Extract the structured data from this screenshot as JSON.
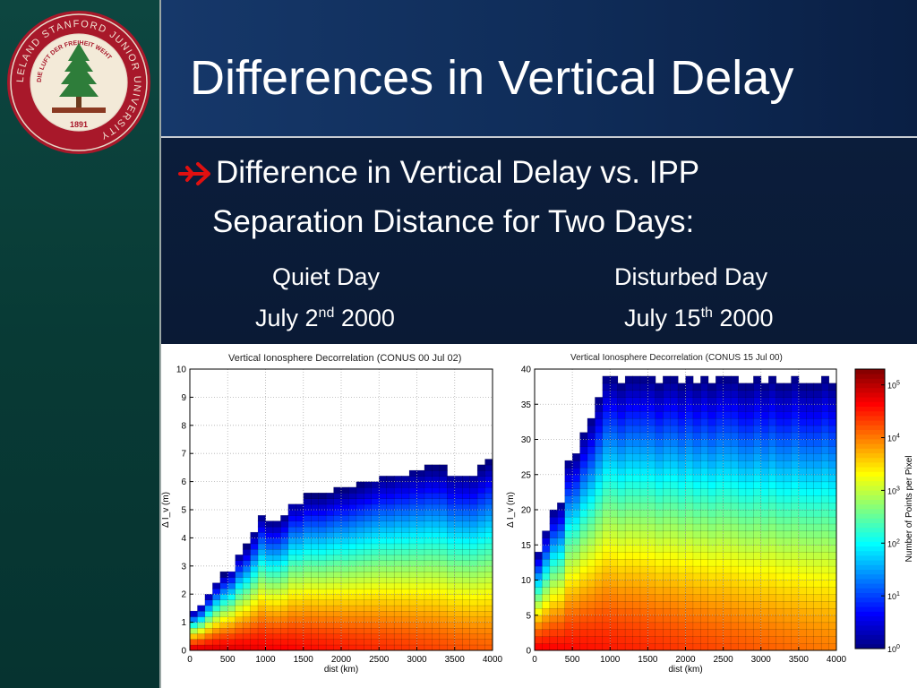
{
  "slide": {
    "title": "Differences in Vertical Delay",
    "bullet_line1": "Difference in Vertical Delay vs. IPP",
    "bullet_line2": "Separation Distance for Two Days:",
    "quiet_label": "Quiet Day",
    "quiet_date_pre": "July 2",
    "quiet_date_sup": "nd",
    "quiet_date_post": " 2000",
    "disturbed_label": "Disturbed  Day",
    "disturbed_date_pre": "July 15",
    "disturbed_date_sup": "th",
    "disturbed_date_post": " 2000"
  },
  "seal": {
    "ring_text": "LELAND STANFORD JUNIOR UNIVERSITY",
    "motto": "DIE LUFT DER FREIHEIT WEHT",
    "year": "1891"
  },
  "colors": {
    "accent_arrow": "#e01010",
    "title_band": "#133566",
    "left_strip": "#0a3f3a"
  },
  "chart_data": [
    {
      "type": "heatmap",
      "title": "Vertical Ionosphere Decorrelation (CONUS 00 Jul 02)",
      "xlabel": "dist (km)",
      "ylabel": "Δ I_v (m)",
      "xlim": [
        0,
        4000
      ],
      "ylim": [
        0,
        10
      ],
      "xticks": [
        "0",
        "500",
        "1000",
        "1500",
        "2000",
        "2500",
        "3000",
        "3500",
        "4000"
      ],
      "yticks": [
        "0",
        "1",
        "2",
        "3",
        "4",
        "5",
        "6",
        "7",
        "8",
        "9",
        "10"
      ],
      "grid": true,
      "bin_km": 100,
      "bin_dv": 0.2,
      "envelope_x_km": [
        100,
        200,
        300,
        400,
        500,
        600,
        700,
        800,
        900,
        1000,
        1100,
        1200,
        1300,
        1400,
        1500,
        1600,
        1700,
        1800,
        1900,
        2000,
        2100,
        2200,
        2300,
        2400,
        2500,
        2600,
        2700,
        2800,
        2900,
        3000,
        3100,
        3200,
        3300,
        3400,
        3500,
        3600,
        3700,
        3800,
        3900,
        4000
      ],
      "envelope_max_dv": [
        1.4,
        1.6,
        2.0,
        2.4,
        2.7,
        2.9,
        3.4,
        3.7,
        4.2,
        4.8,
        4.6,
        4.6,
        4.8,
        5.3,
        5.3,
        5.5,
        5.5,
        5.5,
        5.6,
        5.7,
        5.7,
        5.8,
        5.9,
        6.0,
        6.1,
        6.2,
        6.2,
        6.3,
        6.3,
        6.4,
        6.4,
        6.5,
        6.5,
        6.5,
        6.3,
        6.3,
        6.3,
        6.3,
        6.5,
        6.7
      ],
      "peak_log10_count": 4.9
    },
    {
      "type": "heatmap",
      "title": "Vertical Ionosphere Decorrelation (CONUS 15 Jul 00)",
      "xlabel": "dist (km)",
      "ylabel": "Δ I_v (m)",
      "xlim": [
        0,
        4000
      ],
      "ylim": [
        0,
        40
      ],
      "xticks": [
        "0",
        "500",
        "1000",
        "1500",
        "2000",
        "2500",
        "3000",
        "3500",
        "4000"
      ],
      "yticks": [
        "0",
        "5",
        "10",
        "15",
        "20",
        "25",
        "30",
        "35",
        "40"
      ],
      "grid": true,
      "bin_km": 100,
      "bin_dv": 1,
      "envelope_x_km": [
        100,
        200,
        300,
        400,
        500,
        600,
        700,
        800,
        900,
        1000,
        1100,
        1200,
        1300,
        1400,
        1500,
        1600,
        1700,
        1800,
        1900,
        2000,
        2100,
        2200,
        2300,
        2400,
        2500,
        2600,
        2700,
        2800,
        2900,
        3000,
        3100,
        3200,
        3300,
        3400,
        3500,
        3600,
        3700,
        3800,
        3900,
        4000
      ],
      "envelope_max_dv": [
        14,
        17,
        20,
        21,
        27,
        28,
        31,
        33,
        36,
        39,
        39,
        38,
        39,
        39,
        39,
        39,
        38,
        39,
        39,
        38,
        39,
        38,
        39,
        38,
        39,
        39,
        39,
        38,
        38,
        39,
        38,
        39,
        38,
        38,
        39,
        38,
        38,
        38,
        39,
        38
      ],
      "peak_log10_count": 4.7
    }
  ],
  "colorbar": {
    "label": "Number of Points per Pixel",
    "ticks": [
      {
        "base": "10",
        "exp": "0"
      },
      {
        "base": "10",
        "exp": "1"
      },
      {
        "base": "10",
        "exp": "2"
      },
      {
        "base": "10",
        "exp": "3"
      },
      {
        "base": "10",
        "exp": "4"
      },
      {
        "base": "10",
        "exp": "5"
      }
    ],
    "range_log10": [
      0,
      5.3
    ]
  }
}
